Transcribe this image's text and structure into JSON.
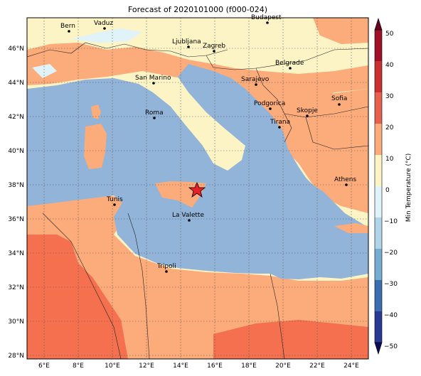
{
  "title": "Forecast of 2020101000 (f000-024)",
  "colorbar": {
    "label": "Min Temperature (°C)",
    "ticks": [
      "50",
      "40",
      "30",
      "20",
      "10",
      "0",
      "−10",
      "−20",
      "−30",
      "−40",
      "−50"
    ],
    "colors": [
      "#67001f",
      "#b2182b",
      "#d6604d",
      "#f4a582",
      "#fddbc7",
      "#f7f7f7",
      "#d1e5f0",
      "#92c5de",
      "#4393c3",
      "#2166ac",
      "#053061"
    ]
  },
  "map": {
    "x_ticks": [
      "6°E",
      "8°E",
      "10°E",
      "12°E",
      "14°E",
      "16°E",
      "18°E",
      "20°E",
      "22°E",
      "24°E"
    ],
    "y_ticks": [
      "46°N",
      "44°N",
      "42°N",
      "40°N",
      "38°N",
      "36°N",
      "34°N",
      "32°N",
      "30°N",
      "28°N"
    ],
    "colors": {
      "sea": "#92b4d8",
      "land_mild": "#fdf4c6",
      "land_warm": "#fcab7a",
      "land_hot": "#f4704f",
      "cold": "#e0f3f8"
    },
    "cities": [
      {
        "name": "Bern"
      },
      {
        "name": "Vaduz"
      },
      {
        "name": "Budapest"
      },
      {
        "name": "Ljubljana"
      },
      {
        "name": "Zagreb"
      },
      {
        "name": "Belgrade"
      },
      {
        "name": "San Marino"
      },
      {
        "name": "Sarajevo"
      },
      {
        "name": "Sofia"
      },
      {
        "name": "Podgorica"
      },
      {
        "name": "Skopje"
      },
      {
        "name": "Roma"
      },
      {
        "name": "Tirana"
      },
      {
        "name": "Athens"
      },
      {
        "name": "Tunis"
      },
      {
        "name": "La Valette"
      },
      {
        "name": "Tripoli"
      }
    ]
  }
}
